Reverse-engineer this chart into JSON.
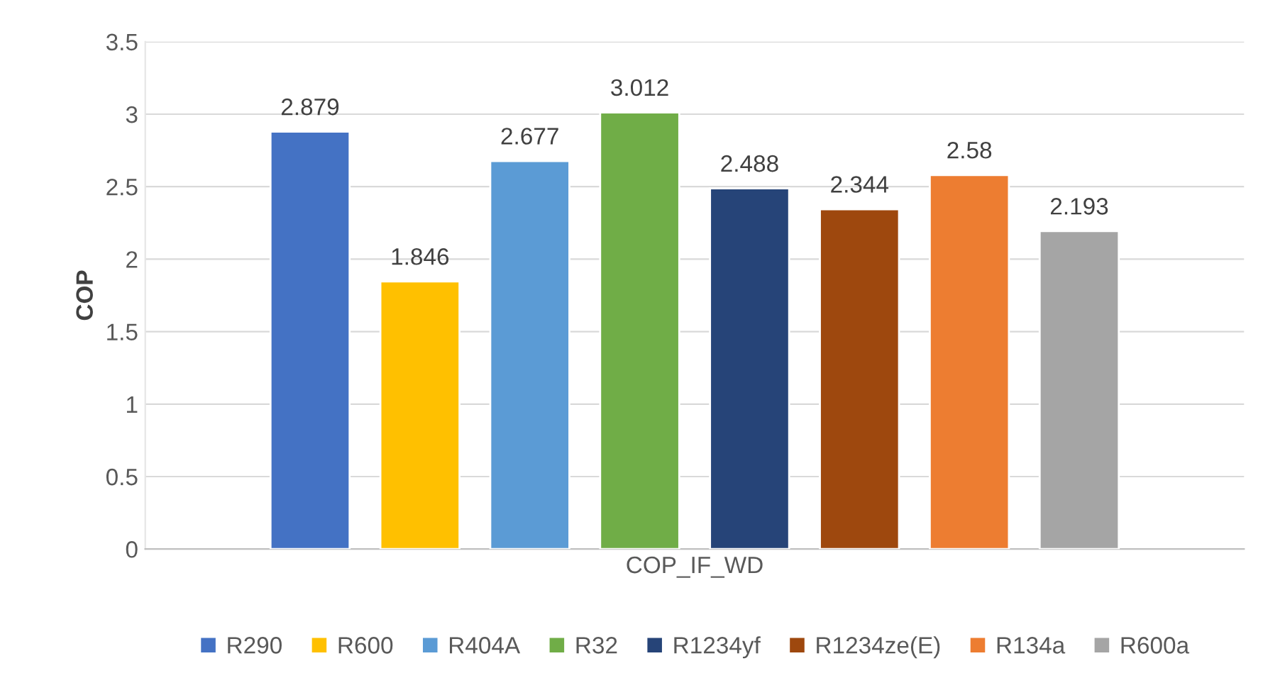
{
  "chart_data": {
    "type": "bar",
    "ylabel": "COP",
    "categories": [
      "COP_IF_WD"
    ],
    "series": [
      {
        "name": "R290",
        "color": "#4472c4",
        "values": [
          2.879
        ]
      },
      {
        "name": "R600",
        "color": "#ffc000",
        "values": [
          1.846
        ]
      },
      {
        "name": "R404A",
        "color": "#5b9bd5",
        "values": [
          2.677
        ]
      },
      {
        "name": "R32",
        "color": "#70ad47",
        "values": [
          3.012
        ]
      },
      {
        "name": "R1234yf",
        "color": "#264478",
        "values": [
          2.488
        ]
      },
      {
        "name": "R1234ze(E)",
        "color": "#9e480e",
        "values": [
          2.344
        ]
      },
      {
        "name": "R134a",
        "color": "#ed7d31",
        "values": [
          2.58
        ]
      },
      {
        "name": "R600a",
        "color": "#a5a5a5",
        "values": [
          2.193
        ]
      }
    ],
    "ylim": [
      0,
      3.5
    ],
    "yticks": [
      0,
      0.5,
      1,
      1.5,
      2,
      2.5,
      3,
      3.5
    ],
    "grid": "y",
    "data_labels": true,
    "legend": "bottom"
  }
}
